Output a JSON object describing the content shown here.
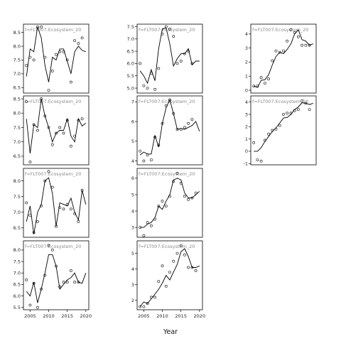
{
  "figure": {
    "xlabel": "Year",
    "panel_label": "f=FLT007:Ecosystem_20"
  },
  "chart_data": [
    {
      "type": "line",
      "panel": "r1c1",
      "ylim": [
        6.3,
        8.8
      ],
      "yticks": [
        6.5,
        7.0,
        7.5,
        8.0,
        8.5
      ],
      "line": {
        "x": [
          2004,
          2005,
          2006,
          2007,
          2008,
          2009,
          2010,
          2011,
          2012,
          2013,
          2014,
          2015,
          2016,
          2017,
          2018,
          2019,
          2020
        ],
        "y": [
          6.9,
          7.9,
          7.8,
          8.7,
          8.3,
          7.3,
          6.7,
          7.6,
          7.5,
          7.9,
          7.9,
          7.45,
          7.0,
          7.8,
          8.0,
          7.85,
          7.8
        ]
      },
      "points": {
        "x": [
          2004,
          2005,
          2006,
          2007,
          2008,
          2009,
          2010,
          2011,
          2012,
          2013,
          2014,
          2015,
          2016,
          2017,
          2018,
          2019
        ],
        "y": [
          7.3,
          7.6,
          7.5,
          8.7,
          8.7,
          7.6,
          6.4,
          7.1,
          7.7,
          7.8,
          7.8,
          7.5,
          6.7,
          8.2,
          8.1,
          8.3
        ]
      }
    },
    {
      "type": "line",
      "panel": "r1c2",
      "ylim": [
        4.8,
        7.6
      ],
      "yticks": [
        5.0,
        5.5,
        6.0,
        6.5,
        7.0,
        7.5
      ],
      "line": {
        "x": [
          2004,
          2005,
          2006,
          2007,
          2008,
          2009,
          2010,
          2011,
          2012,
          2013,
          2014,
          2015,
          2016,
          2017,
          2018,
          2019,
          2020
        ],
        "y": [
          5.7,
          5.5,
          5.2,
          5.75,
          5.3,
          6.6,
          7.4,
          7.45,
          6.8,
          5.9,
          6.2,
          6.4,
          6.4,
          6.6,
          5.95,
          6.1,
          6.1
        ]
      },
      "points": {
        "x": [
          2004,
          2005,
          2006,
          2007,
          2008,
          2009,
          2010,
          2011,
          2012,
          2013,
          2014,
          2015,
          2016,
          2017,
          2018
        ],
        "y": [
          6.0,
          5.1,
          5.0,
          5.6,
          4.95,
          5.8,
          7.2,
          7.5,
          7.4,
          7.1,
          6.0,
          6.1,
          6.4,
          6.5,
          6.0
        ]
      }
    },
    {
      "type": "line",
      "panel": "r1c3",
      "ylim": [
        -0.2,
        4.7
      ],
      "yticks": [
        0,
        1,
        2,
        3,
        4
      ],
      "line": {
        "x": [
          2004,
          2005,
          2006,
          2007,
          2008,
          2009,
          2010,
          2011,
          2012,
          2013,
          2014,
          2015,
          2016,
          2017,
          2018,
          2019,
          2020
        ],
        "y": [
          0.3,
          0.2,
          0.7,
          0.75,
          1.1,
          1.8,
          2.4,
          2.7,
          2.6,
          2.9,
          3.3,
          4.0,
          4.3,
          3.6,
          3.5,
          3.2,
          3.3
        ]
      },
      "points": {
        "x": [
          2004,
          2005,
          2006,
          2007,
          2008,
          2009,
          2010,
          2011,
          2012,
          2013,
          2014,
          2015,
          2016,
          2017,
          2018,
          2019
        ],
        "y": [
          0.3,
          0.3,
          0.9,
          0.5,
          0.8,
          2.1,
          2.8,
          2.7,
          2.8,
          3.5,
          4.3,
          4.1,
          3.8,
          3.2,
          3.2,
          3.2
        ]
      }
    },
    {
      "type": "line",
      "panel": "r2c1",
      "ylim": [
        6.2,
        8.6
      ],
      "yticks": [
        6.5,
        7.0,
        7.5,
        8.0,
        8.5
      ],
      "line": {
        "x": [
          2004,
          2005,
          2006,
          2007,
          2008,
          2009,
          2010,
          2011,
          2012,
          2013,
          2014,
          2015,
          2016,
          2017,
          2018,
          2019,
          2020
        ],
        "y": [
          7.8,
          6.6,
          7.6,
          7.5,
          8.5,
          7.9,
          7.5,
          7.0,
          7.3,
          7.4,
          7.4,
          7.8,
          7.2,
          7.0,
          7.8,
          7.55,
          7.65
        ]
      },
      "points": {
        "x": [
          2004,
          2005,
          2006,
          2007,
          2008,
          2009,
          2010,
          2011,
          2012,
          2013,
          2014,
          2015,
          2016,
          2017,
          2018,
          2019
        ],
        "y": [
          8.4,
          6.3,
          7.6,
          7.4,
          8.5,
          7.9,
          7.5,
          6.9,
          7.3,
          7.5,
          7.3,
          7.75,
          6.85,
          7.2,
          7.75,
          7.8
        ]
      }
    },
    {
      "type": "line",
      "panel": "r2c2",
      "ylim": [
        3.8,
        7.3
      ],
      "yticks": [
        4.0,
        5.0,
        6.0,
        7.0
      ],
      "line": {
        "x": [
          2004,
          2005,
          2006,
          2007,
          2008,
          2009,
          2010,
          2011,
          2012,
          2013,
          2014,
          2015,
          2016,
          2017,
          2018,
          2019,
          2020
        ],
        "y": [
          4.3,
          4.45,
          4.35,
          4.35,
          5.3,
          4.7,
          5.9,
          6.7,
          7.1,
          6.4,
          5.6,
          5.65,
          5.6,
          5.7,
          5.8,
          6.0,
          5.5
        ]
      },
      "points": {
        "x": [
          2004,
          2005,
          2006,
          2007,
          2008,
          2009,
          2010,
          2011,
          2012,
          2013,
          2014,
          2015,
          2016,
          2017,
          2018
        ],
        "y": [
          4.5,
          4.0,
          4.3,
          4.05,
          5.2,
          4.8,
          5.9,
          6.8,
          7.1,
          6.4,
          5.6,
          5.6,
          5.7,
          5.9,
          6.1
        ]
      }
    },
    {
      "type": "line",
      "panel": "r2c3",
      "ylim": [
        -1.1,
        4.5
      ],
      "yticks": [
        -1,
        0,
        1,
        2,
        3,
        4
      ],
      "line": {
        "x": [
          2004,
          2005,
          2006,
          2007,
          2008,
          2009,
          2010,
          2011,
          2012,
          2013,
          2014,
          2015,
          2016,
          2017,
          2018,
          2019,
          2020
        ],
        "y": [
          0.0,
          0.0,
          0.3,
          0.8,
          1.2,
          1.6,
          1.9,
          2.3,
          2.7,
          2.75,
          3.0,
          3.4,
          3.6,
          3.95,
          3.9,
          3.8,
          3.9
        ]
      },
      "points": {
        "x": [
          2004,
          2005,
          2006,
          2007,
          2008,
          2009,
          2010,
          2011,
          2012,
          2013,
          2014,
          2015,
          2016,
          2017,
          2018,
          2019
        ],
        "y": [
          0.7,
          -0.7,
          -0.8,
          0.9,
          1.4,
          1.7,
          1.8,
          2.1,
          3.0,
          3.1,
          3.1,
          3.3,
          3.4,
          4.1,
          3.9,
          3.4
        ]
      }
    },
    {
      "type": "line",
      "panel": "r3c1",
      "ylim": [
        6.2,
        8.4
      ],
      "yticks": [
        6.5,
        7.0,
        7.5,
        8.0
      ],
      "line": {
        "x": [
          2004,
          2005,
          2006,
          2007,
          2008,
          2009,
          2010,
          2011,
          2012,
          2013,
          2014,
          2015,
          2016,
          2017,
          2018,
          2019,
          2020
        ],
        "y": [
          6.7,
          7.2,
          6.3,
          7.0,
          7.25,
          8.0,
          8.1,
          7.6,
          6.55,
          7.3,
          7.25,
          7.2,
          7.45,
          7.0,
          6.75,
          7.7,
          7.25
        ]
      },
      "points": {
        "x": [
          2004,
          2005,
          2006,
          2007,
          2008,
          2009,
          2010,
          2011,
          2012,
          2013,
          2014,
          2015,
          2016,
          2017,
          2018,
          2019
        ],
        "y": [
          7.3,
          6.9,
          6.35,
          6.7,
          7.2,
          8.0,
          8.3,
          7.8,
          6.55,
          7.15,
          7.1,
          7.25,
          7.1,
          6.95,
          6.7,
          7.7
        ]
      }
    },
    {
      "type": "line",
      "panel": "r3c2",
      "ylim": [
        2.4,
        6.6
      ],
      "yticks": [
        3,
        4,
        5,
        6
      ],
      "line": {
        "x": [
          2004,
          2005,
          2006,
          2007,
          2008,
          2009,
          2010,
          2011,
          2012,
          2013,
          2014,
          2015,
          2016,
          2017,
          2018,
          2019,
          2020
        ],
        "y": [
          3.0,
          3.0,
          3.2,
          3.3,
          3.6,
          4.3,
          4.1,
          4.6,
          5.0,
          5.9,
          6.0,
          5.9,
          5.1,
          4.8,
          4.8,
          5.0,
          5.2
        ]
      },
      "points": {
        "x": [
          2004,
          2005,
          2006,
          2007,
          2008,
          2009,
          2010,
          2011,
          2012,
          2013,
          2014,
          2015,
          2016,
          2017,
          2018,
          2019
        ],
        "y": [
          3.0,
          2.5,
          3.3,
          3.1,
          3.5,
          4.3,
          4.6,
          4.3,
          4.9,
          5.8,
          6.3,
          5.7,
          4.9,
          4.7,
          4.8,
          5.1
        ]
      }
    },
    {
      "type": "line",
      "panel": "r4c1",
      "ylim": [
        5.4,
        8.4
      ],
      "yticks": [
        5.5,
        6.0,
        6.5,
        7.0,
        7.5,
        8.0
      ],
      "line": {
        "x": [
          2004,
          2005,
          2006,
          2007,
          2008,
          2009,
          2010,
          2011,
          2012,
          2013,
          2014,
          2015,
          2016,
          2017,
          2018,
          2019,
          2020
        ],
        "y": [
          6.2,
          6.0,
          6.6,
          5.7,
          6.3,
          7.0,
          7.8,
          7.8,
          7.3,
          6.3,
          6.5,
          6.7,
          6.8,
          7.0,
          6.6,
          6.55,
          7.0
        ]
      },
      "points": {
        "x": [
          2004,
          2005,
          2006,
          2007,
          2008,
          2009,
          2010,
          2011,
          2012,
          2013,
          2014,
          2015,
          2016,
          2017,
          2018
        ],
        "y": [
          6.7,
          5.6,
          6.55,
          5.5,
          6.3,
          6.9,
          8.2,
          8.0,
          7.3,
          6.4,
          6.6,
          6.6,
          7.1,
          6.6,
          6.6
        ]
      }
    },
    {
      "type": "line",
      "panel": "r4c2",
      "ylim": [
        1.4,
        5.8
      ],
      "yticks": [
        2,
        3,
        4,
        5
      ],
      "line": {
        "x": [
          2004,
          2005,
          2006,
          2007,
          2008,
          2009,
          2010,
          2011,
          2012,
          2013,
          2014,
          2015,
          2016,
          2017,
          2018,
          2019,
          2020
        ],
        "y": [
          1.6,
          1.9,
          1.8,
          2.1,
          2.4,
          2.7,
          3.1,
          3.6,
          3.3,
          3.8,
          4.3,
          5.1,
          5.3,
          4.8,
          4.1,
          4.1,
          4.2
        ]
      },
      "points": {
        "x": [
          2004,
          2005,
          2006,
          2007,
          2008,
          2009,
          2010,
          2011,
          2012,
          2013,
          2014,
          2015,
          2016,
          2017,
          2018,
          2019
        ],
        "y": [
          1.6,
          1.6,
          1.8,
          2.2,
          2.2,
          3.2,
          4.2,
          2.9,
          3.8,
          4.5,
          5.0,
          5.5,
          4.9,
          4.1,
          4.1,
          3.9
        ]
      }
    }
  ]
}
